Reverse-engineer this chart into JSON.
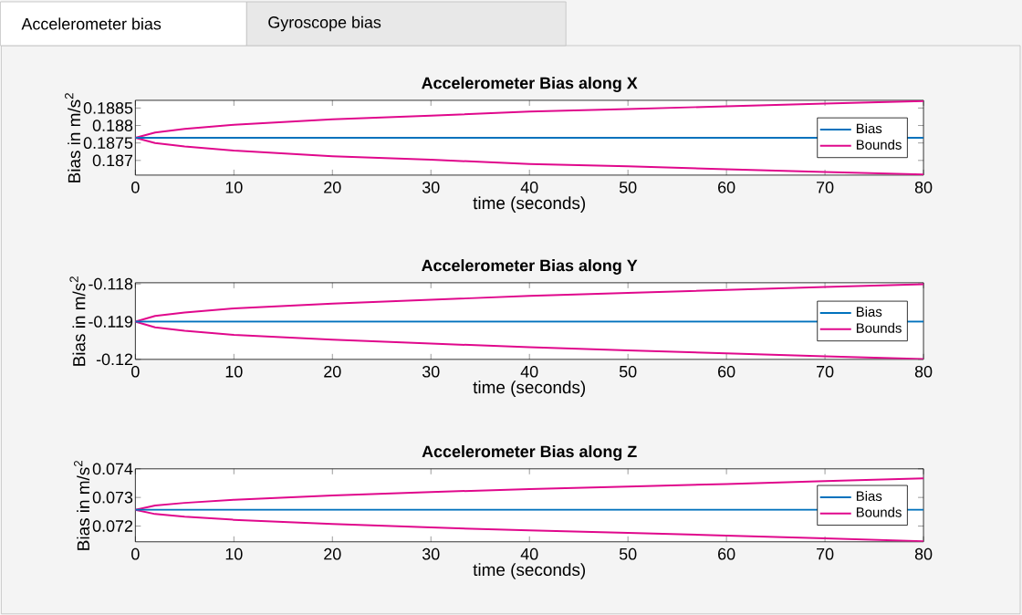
{
  "chart_data": [
    {
      "type": "other",
      "annotations": [
        "Accelerometer bias",
        "Gyroscope bias"
      ]
    },
    {
      "type": "line",
      "title": "Accelerometer Bias along X",
      "xlabel": "time (seconds)",
      "ylabel": "Bias in m/s$^{2}$",
      "x": [
        0,
        2,
        5,
        10,
        20,
        30,
        40,
        50,
        60,
        70,
        80
      ],
      "xlim": [
        0,
        80
      ],
      "xticks": [
        0,
        10,
        20,
        30,
        40,
        50,
        60,
        70,
        80
      ],
      "ylim": [
        0.18658,
        0.18872
      ],
      "yticks": [
        0.187,
        0.1875,
        0.188,
        0.1885
      ],
      "legend": "right",
      "series": [
        {
          "name": "Bias",
          "color": "#0072bd",
          "values": [
            0.18765,
            0.18765,
            0.18765,
            0.18765,
            0.18765,
            0.18765,
            0.18765,
            0.18765,
            0.18765,
            null,
            0.18765
          ]
        },
        {
          "name": "Bounds",
          "color": "#e0088c",
          "values": [
            0.18765,
            0.1878,
            0.1879,
            0.18802,
            0.18818,
            0.18828,
            0.1884,
            0.18847,
            0.18855,
            0.18863,
            0.1887
          ]
        },
        {
          "color": "#e0088c",
          "values": [
            0.18765,
            0.1875,
            0.1874,
            0.18728,
            0.18712,
            0.18702,
            0.1869,
            0.18683,
            0.18675,
            0.18667,
            0.1866
          ]
        }
      ]
    },
    {
      "type": "line",
      "title": "Accelerometer Bias along Y",
      "xlabel": "time (seconds)",
      "ylabel": "Bias in m/s$^{2}$",
      "x": [
        0,
        2,
        5,
        10,
        20,
        30,
        40,
        50,
        60,
        70,
        80
      ],
      "xlim": [
        0,
        80
      ],
      "xticks": [
        0,
        10,
        20,
        30,
        40,
        50,
        60,
        70,
        80
      ],
      "ylim": [
        -0.12,
        -0.11797
      ],
      "yticks": [
        -0.12,
        -0.119,
        -0.118
      ],
      "legend": "right",
      "series": [
        {
          "name": "Bias",
          "color": "#0072bd",
          "values": [
            -0.119,
            -0.119,
            -0.119,
            -0.119,
            -0.119,
            -0.119,
            -0.119,
            -0.119,
            -0.119,
            null,
            -0.119
          ]
        },
        {
          "name": "Bounds",
          "color": "#e0088c",
          "values": [
            -0.119,
            -0.11885,
            -0.11876,
            -0.11865,
            -0.11852,
            -0.11842,
            -0.11832,
            -0.11824,
            -0.11816,
            -0.11808,
            -0.11801
          ]
        },
        {
          "color": "#e0088c",
          "values": [
            -0.119,
            -0.11915,
            -0.11924,
            -0.11935,
            -0.11948,
            -0.11958,
            -0.11968,
            -0.11976,
            -0.11984,
            -0.11992,
            -0.11999
          ]
        }
      ]
    },
    {
      "type": "line",
      "title": "Accelerometer Bias along Z",
      "xlabel": "time (seconds)",
      "ylabel": "Bias in m/s$^{2}$",
      "x": [
        0,
        2,
        5,
        10,
        20,
        30,
        40,
        50,
        60,
        70,
        80
      ],
      "xlim": [
        0,
        80
      ],
      "xticks": [
        0,
        10,
        20,
        30,
        40,
        50,
        60,
        70,
        80
      ],
      "ylim": [
        0.07145,
        0.074
      ],
      "yticks": [
        0.072,
        0.073,
        0.074
      ],
      "legend": "right",
      "series": [
        {
          "name": "Bias",
          "color": "#0072bd",
          "values": [
            0.07257,
            0.07257,
            0.07257,
            0.07257,
            0.07257,
            0.07257,
            0.07257,
            0.07257,
            0.07257,
            null,
            0.07257
          ]
        },
        {
          "name": "Bounds",
          "color": "#e0088c",
          "values": [
            0.07257,
            0.07272,
            0.07281,
            0.07292,
            0.07307,
            0.07319,
            0.07329,
            0.07338,
            0.07347,
            0.07357,
            0.07367
          ]
        },
        {
          "color": "#e0088c",
          "values": [
            0.07257,
            0.07242,
            0.07233,
            0.07222,
            0.07207,
            0.07195,
            0.07185,
            0.07176,
            0.07167,
            0.07157,
            0.07147
          ]
        }
      ]
    }
  ]
}
